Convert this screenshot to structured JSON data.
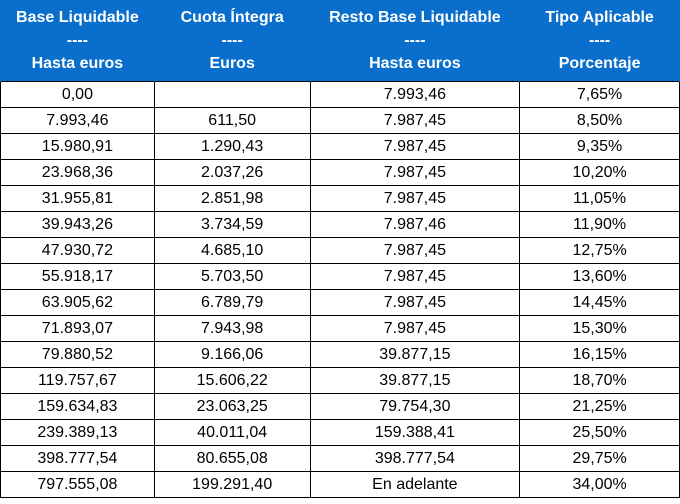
{
  "headers": [
    {
      "line1": "Base Liquidable",
      "sep": "----",
      "line3": "Hasta euros"
    },
    {
      "line1": "Cuota Íntegra",
      "sep": "----",
      "line3": "Euros"
    },
    {
      "line1": "Resto Base Liquidable",
      "sep": "----",
      "line3": "Hasta euros"
    },
    {
      "line1": "Tipo Aplicable",
      "sep": "----",
      "line3": "Porcentaje"
    }
  ],
  "rows": [
    [
      "0,00",
      "",
      "7.993,46",
      "7,65%"
    ],
    [
      "7.993,46",
      "611,50",
      "7.987,45",
      "8,50%"
    ],
    [
      "15.980,91",
      "1.290,43",
      "7.987,45",
      "9,35%"
    ],
    [
      "23.968,36",
      "2.037,26",
      "7.987,45",
      "10,20%"
    ],
    [
      "31.955,81",
      "2.851,98",
      "7.987,45",
      "11,05%"
    ],
    [
      "39.943,26",
      "3.734,59",
      "7.987,46",
      "11,90%"
    ],
    [
      "47.930,72",
      "4.685,10",
      "7.987,45",
      "12,75%"
    ],
    [
      "55.918,17",
      "5.703,50",
      "7.987,45",
      "13,60%"
    ],
    [
      "63.905,62",
      "6.789,79",
      "7.987,45",
      "14,45%"
    ],
    [
      "71.893,07",
      "7.943,98",
      "7.987,45",
      "15,30%"
    ],
    [
      "79.880,52",
      "9.166,06",
      "39.877,15",
      "16,15%"
    ],
    [
      "119.757,67",
      "15.606,22",
      "39.877,15",
      "18,70%"
    ],
    [
      "159.634,83",
      "23.063,25",
      "79.754,30",
      "21,25%"
    ],
    [
      "239.389,13",
      "40.011,04",
      "159.388,41",
      "25,50%"
    ],
    [
      "398.777,54",
      "80.655,08",
      "398.777,54",
      "29,75%"
    ],
    [
      "797.555,08",
      "199.291,40",
      "En adelante",
      "34,00%"
    ]
  ],
  "colors": {
    "header_bg": "#0A6ECC",
    "header_text": "#FFFFFF"
  }
}
